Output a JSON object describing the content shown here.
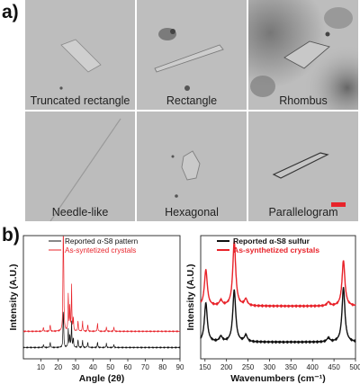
{
  "panel_a": {
    "label": "a)",
    "cells": [
      {
        "caption": "Truncated rectangle"
      },
      {
        "caption": "Rectangle"
      },
      {
        "caption": "Rhombus"
      },
      {
        "caption": "Needle-like"
      },
      {
        "caption": "Hexagonal"
      },
      {
        "caption": "Parallelogram"
      }
    ],
    "scale_bar_color": "#e8232a"
  },
  "panel_b": {
    "label": "b)"
  },
  "chart_data": [
    {
      "type": "line",
      "xlabel": "Angle (2θ)",
      "ylabel": "Intensity (A.U.)",
      "xlim": [
        0,
        90
      ],
      "xticks": [
        10,
        20,
        30,
        40,
        50,
        60,
        70,
        80,
        90
      ],
      "grid": false,
      "legend_position": "top-right",
      "series": [
        {
          "name": "Reported α-S8 pattern",
          "color": "#111111",
          "peaks": [
            [
              11.5,
              2
            ],
            [
              15.4,
              4
            ],
            [
              22.9,
              22
            ],
            [
              23.1,
              10
            ],
            [
              25.8,
              14
            ],
            [
              26.7,
              9
            ],
            [
              27.7,
              18
            ],
            [
              28.7,
              7
            ],
            [
              31.4,
              6
            ],
            [
              34.0,
              5
            ],
            [
              37.0,
              4
            ],
            [
              42.6,
              4
            ],
            [
              47.7,
              3
            ],
            [
              52.0,
              2
            ]
          ]
        },
        {
          "name": "As-syntetized crystals",
          "color": "#e8232a",
          "peaks": [
            [
              11.5,
              3
            ],
            [
              15.4,
              5
            ],
            [
              22.9,
              65
            ],
            [
              23.1,
              38
            ],
            [
              25.8,
              28
            ],
            [
              26.7,
              18
            ],
            [
              27.7,
              32
            ],
            [
              28.7,
              10
            ],
            [
              31.4,
              8
            ],
            [
              34.0,
              7
            ],
            [
              37.0,
              5
            ],
            [
              42.6,
              6
            ],
            [
              47.7,
              3
            ],
            [
              52.0,
              3
            ]
          ]
        }
      ]
    },
    {
      "type": "line",
      "xlabel": "Wavenumbers (cm⁻¹)",
      "ylabel": "Intensity (A.U.)",
      "xlim": [
        140,
        500
      ],
      "xticks": [
        150,
        200,
        250,
        300,
        350,
        400,
        450,
        500
      ],
      "grid": false,
      "legend_position": "top-right",
      "series": [
        {
          "name": "Reported α-S8 sulfur",
          "color": "#111111",
          "peaks": [
            [
              152,
              30
            ],
            [
              187,
              4
            ],
            [
              218,
              40
            ],
            [
              245,
              5
            ],
            [
              437,
              3
            ],
            [
              472,
              42
            ]
          ]
        },
        {
          "name": "As-synthetized crystals",
          "color": "#e8232a",
          "peaks": [
            [
              152,
              28
            ],
            [
              187,
              4
            ],
            [
              218,
              50
            ],
            [
              245,
              5
            ],
            [
              437,
              3
            ],
            [
              472,
              35
            ]
          ]
        }
      ]
    }
  ]
}
